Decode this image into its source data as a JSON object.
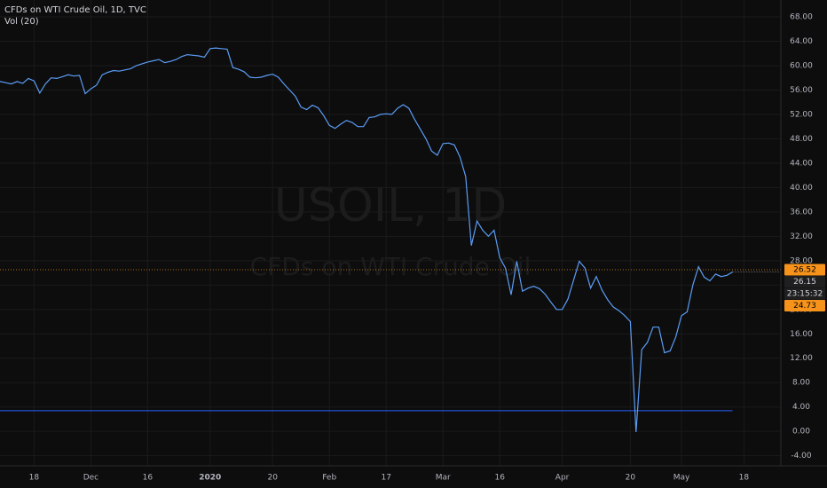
{
  "chart_data": {
    "type": "line",
    "title": "CFDs on WTI Crude Oil, 1D, TVC",
    "indicator": "Vol (20)",
    "watermark": "USOIL, 1D",
    "watermark_subtitle": "CFDs on WTI Crude Oil",
    "categories": [
      null,
      null,
      null,
      null,
      null,
      null,
      "18",
      null,
      null,
      null,
      null,
      null,
      null,
      null,
      null,
      null,
      "Dec",
      null,
      null,
      null,
      null,
      null,
      null,
      null,
      null,
      null,
      "16",
      null,
      null,
      null,
      null,
      null,
      null,
      null,
      null,
      null,
      null,
      "2020",
      null,
      null,
      null,
      null,
      null,
      null,
      null,
      null,
      null,
      null,
      "20",
      null,
      null,
      null,
      null,
      null,
      null,
      null,
      null,
      null,
      "Feb",
      null,
      null,
      null,
      null,
      null,
      null,
      null,
      null,
      null,
      "17",
      null,
      null,
      null,
      null,
      null,
      null,
      null,
      null,
      null,
      "Mar",
      null,
      null,
      null,
      null,
      null,
      null,
      null,
      null,
      null,
      "16",
      null,
      null,
      null,
      null,
      null,
      null,
      null,
      null,
      null,
      null,
      "Apr",
      null,
      null,
      null,
      null,
      null,
      null,
      null,
      null,
      null,
      null,
      null,
      "20",
      null,
      null,
      null,
      null,
      null,
      null,
      null,
      null,
      "May",
      null,
      null,
      null,
      null,
      null,
      null,
      null,
      null,
      null,
      null,
      "18"
    ],
    "series": [
      {
        "name": "USOIL",
        "color": "#5b9cf6",
        "values": [
          57.4,
          57.2,
          57.0,
          57.4,
          57.1,
          57.9,
          57.5,
          55.5,
          57.0,
          58.0,
          57.9,
          58.2,
          58.5,
          58.3,
          58.4,
          55.4,
          56.2,
          56.8,
          58.5,
          58.9,
          59.2,
          59.1,
          59.3,
          59.5,
          60.0,
          60.3,
          60.6,
          60.8,
          61.0,
          60.5,
          60.7,
          61.0,
          61.5,
          61.8,
          61.7,
          61.6,
          61.4,
          62.8,
          62.9,
          62.8,
          62.7,
          59.7,
          59.4,
          59.0,
          58.1,
          58.0,
          58.1,
          58.4,
          58.6,
          58.1,
          57.0,
          56.0,
          55.0,
          53.2,
          52.8,
          53.5,
          53.1,
          51.8,
          50.2,
          49.7,
          50.4,
          51.0,
          50.7,
          50.0,
          50.0,
          51.5,
          51.6,
          52.0,
          52.1,
          52.0,
          53.0,
          53.6,
          53.0,
          51.2,
          49.6,
          48.0,
          46.0,
          45.3,
          47.2,
          47.3,
          47.0,
          45.0,
          41.8,
          30.5,
          34.5,
          33.0,
          32.0,
          33.0,
          28.5,
          26.8,
          22.4,
          27.9,
          23.0,
          23.5,
          23.8,
          23.4,
          22.5,
          21.2,
          20.0,
          20.0,
          21.7,
          24.8,
          27.9,
          26.8,
          23.5,
          25.4,
          23.2,
          21.6,
          20.4,
          19.8,
          19.0,
          18.0,
          -0.1,
          13.4,
          14.6,
          17.1,
          17.1,
          12.9,
          13.2,
          15.5,
          19.0,
          19.6,
          24.0,
          27.0,
          25.3,
          24.7,
          25.8,
          25.4,
          25.6,
          26.15,
          null,
          null
        ]
      }
    ],
    "volume_level": 3.4,
    "volume_color": "#2962ff",
    "high_marker": 26.52,
    "last_price": 26.15,
    "countdown": "23:15:32",
    "low_marker": 24.73,
    "marker_color": "#f7931a",
    "ylim": [
      -5.65,
      70.77
    ],
    "yticks": [
      {
        "value": 68,
        "label": "68.00"
      },
      {
        "value": 64,
        "label": "64.00"
      },
      {
        "value": 60,
        "label": "60.00"
      },
      {
        "value": 56,
        "label": "56.00"
      },
      {
        "value": 52,
        "label": "52.00"
      },
      {
        "value": 48,
        "label": "48.00"
      },
      {
        "value": 44,
        "label": "44.00"
      },
      {
        "value": 40,
        "label": "40.00"
      },
      {
        "value": 36,
        "label": "36.00"
      },
      {
        "value": 32,
        "label": "32.00"
      },
      {
        "value": 28,
        "label": "28.00"
      },
      {
        "value": 24,
        "label": "24.00"
      },
      {
        "value": 20,
        "label": "20.00"
      },
      {
        "value": 16,
        "label": "16.00"
      },
      {
        "value": 12,
        "label": "12.00"
      },
      {
        "value": 8,
        "label": "8.00"
      },
      {
        "value": 4,
        "label": "4.00"
      },
      {
        "value": 0,
        "label": "0.00"
      },
      {
        "value": -4,
        "label": "-4.00"
      }
    ],
    "grid": true
  }
}
